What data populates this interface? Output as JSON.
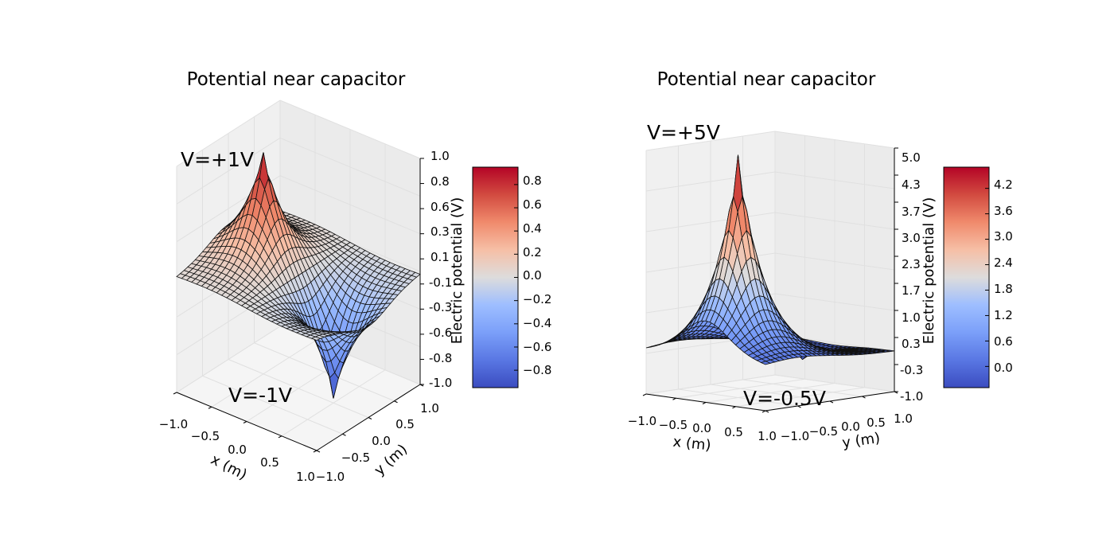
{
  "chart_data": [
    {
      "type": "surface3d",
      "title": "Potential near capacitor",
      "xlabel": "x (m)",
      "ylabel": "y (m)",
      "zlabel": "Electric potential (V)",
      "x_ticks": [
        "−1.0",
        "−0.5",
        "0.0",
        "0.5",
        "1.0"
      ],
      "y_ticks": [
        "−1.0",
        "−0.5",
        "0.0",
        "0.5",
        "1.0"
      ],
      "z_ticks": [
        "-1.0",
        "-0.8",
        "-0.6",
        "-0.3",
        "-0.1",
        "0.1",
        "0.3",
        "0.6",
        "0.8",
        "1.0"
      ],
      "colorbar_ticks": [
        "−0.8",
        "−0.6",
        "−0.4",
        "−0.2",
        "0.0",
        "0.2",
        "0.4",
        "0.6",
        "0.8"
      ],
      "colorbar_range": [
        -0.95,
        0.95
      ],
      "colormap": "coolwarm",
      "xlim": [
        -1,
        1
      ],
      "ylim": [
        -1,
        1
      ],
      "zlim": [
        -1,
        1
      ],
      "annotations": [
        {
          "text": "V=+1V"
        },
        {
          "text": "V=-1V"
        }
      ],
      "plates": [
        {
          "x": -0.5,
          "y": 0.0,
          "v": 1.0
        },
        {
          "x": 0.5,
          "y": 0.0,
          "v": -1.0
        }
      ],
      "grid": true
    },
    {
      "type": "surface3d",
      "title": "Potential near capacitor",
      "xlabel": "x (m)",
      "ylabel": "y (m)",
      "zlabel": "Electric potential (V)",
      "x_ticks": [
        "−1.0",
        "−0.5",
        "0.0",
        "0.5",
        "1.0"
      ],
      "y_ticks": [
        "−1.0",
        "−0.5",
        "0.0",
        "0.5",
        "1.0"
      ],
      "z_ticks": [
        "-1.0",
        "-0.3",
        "0.3",
        "1.0",
        "1.7",
        "2.3",
        "3.0",
        "3.7",
        "4.3",
        "5.0"
      ],
      "colorbar_ticks": [
        "0.0",
        "0.6",
        "1.2",
        "1.8",
        "2.4",
        "3.0",
        "3.6",
        "4.2"
      ],
      "colorbar_range": [
        -0.5,
        4.7
      ],
      "colormap": "coolwarm",
      "xlim": [
        -1,
        1
      ],
      "ylim": [
        -1,
        1
      ],
      "zlim": [
        -1,
        5
      ],
      "annotations": [
        {
          "text": "V=+5V"
        },
        {
          "text": "V=-0.5V"
        }
      ],
      "plates": [
        {
          "x": 0.0,
          "y": -0.5,
          "v": 5.0
        },
        {
          "x": 0.0,
          "y": 0.5,
          "v": -0.5
        }
      ],
      "grid": true
    }
  ],
  "colors": {
    "coolwarm_low": "#3b4cc0",
    "coolwarm_mid": "#dddddd",
    "coolwarm_high": "#b40426",
    "pane": "#f2f2f2",
    "gridline": "#e0e0e0"
  }
}
